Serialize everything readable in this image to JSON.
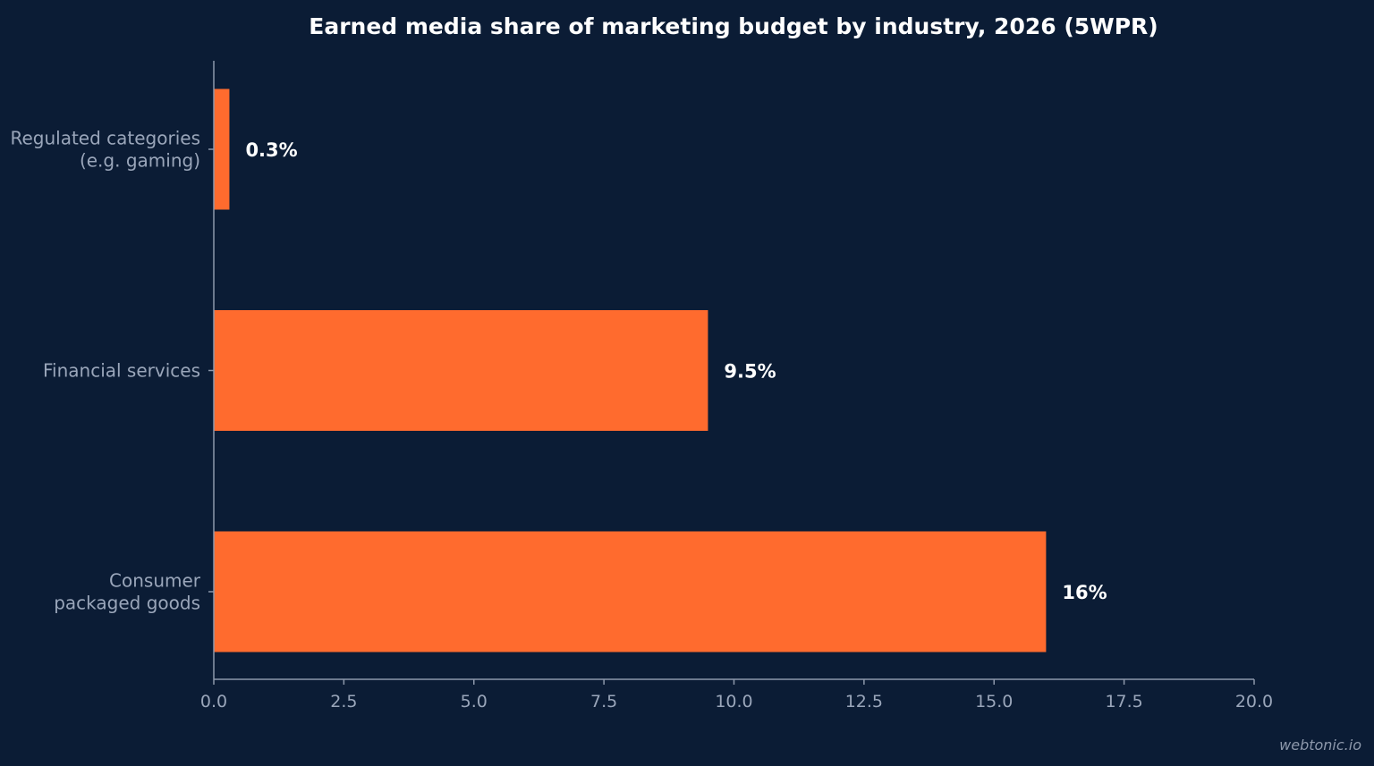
{
  "colors": {
    "background": "#0b1c35",
    "bar": "#ff6b2e",
    "axis": "#8d98ab",
    "text_muted": "#9aa6ba",
    "text_strong": "#ffffff"
  },
  "watermark": "webtonic.io",
  "chart_data": {
    "type": "bar",
    "orientation": "horizontal",
    "title": "Earned media share of marketing budget by industry, 2026 (5WPR)",
    "xlabel": "",
    "ylabel": "",
    "categories": [
      [
        "Regulated categories",
        "(e.g. gaming)"
      ],
      [
        "Financial services"
      ],
      [
        "Consumer",
        "packaged goods"
      ]
    ],
    "values": [
      0.3,
      9.5,
      16
    ],
    "data_labels": [
      "0.3%",
      "9.5%",
      "16%"
    ],
    "xlim": [
      0,
      20
    ],
    "xticks": [
      "0.0",
      "2.5",
      "5.0",
      "7.5",
      "10.0",
      "12.5",
      "15.0",
      "17.5",
      "20.0"
    ],
    "grid": false,
    "legend": "none"
  }
}
